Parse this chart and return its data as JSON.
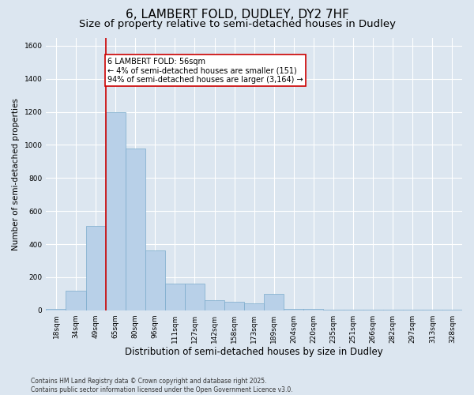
{
  "title": "6, LAMBERT FOLD, DUDLEY, DY2 7HF",
  "subtitle": "Size of property relative to semi-detached houses in Dudley",
  "xlabel": "Distribution of semi-detached houses by size in Dudley",
  "ylabel": "Number of semi-detached properties",
  "footer": "Contains HM Land Registry data © Crown copyright and database right 2025.\nContains public sector information licensed under the Open Government Licence v3.0.",
  "categories": [
    "18sqm",
    "34sqm",
    "49sqm",
    "65sqm",
    "80sqm",
    "96sqm",
    "111sqm",
    "127sqm",
    "142sqm",
    "158sqm",
    "173sqm",
    "189sqm",
    "204sqm",
    "220sqm",
    "235sqm",
    "251sqm",
    "266sqm",
    "282sqm",
    "297sqm",
    "313sqm",
    "328sqm"
  ],
  "values": [
    10,
    120,
    510,
    1200,
    980,
    360,
    160,
    160,
    60,
    50,
    40,
    100,
    10,
    10,
    5,
    5,
    5,
    5,
    5,
    5,
    5
  ],
  "bar_color": "#b8d0e8",
  "bar_edge_color": "#7aabcc",
  "red_line_x": 2.5,
  "annotation_text": "6 LAMBERT FOLD: 56sqm\n← 4% of semi-detached houses are smaller (151)\n94% of semi-detached houses are larger (3,164) →",
  "annotation_box_facecolor": "#ffffff",
  "annotation_box_edgecolor": "#cc0000",
  "ylim_max": 1650,
  "bg_color": "#dce6f0",
  "grid_color": "#ffffff",
  "red_line_color": "#cc0000",
  "title_fontsize": 11,
  "subtitle_fontsize": 9.5,
  "ylabel_fontsize": 7.5,
  "xlabel_fontsize": 8.5,
  "tick_fontsize": 6.5,
  "annot_fontsize": 7.0,
  "footer_fontsize": 5.5,
  "yticks": [
    0,
    200,
    400,
    600,
    800,
    1000,
    1200,
    1400,
    1600
  ]
}
